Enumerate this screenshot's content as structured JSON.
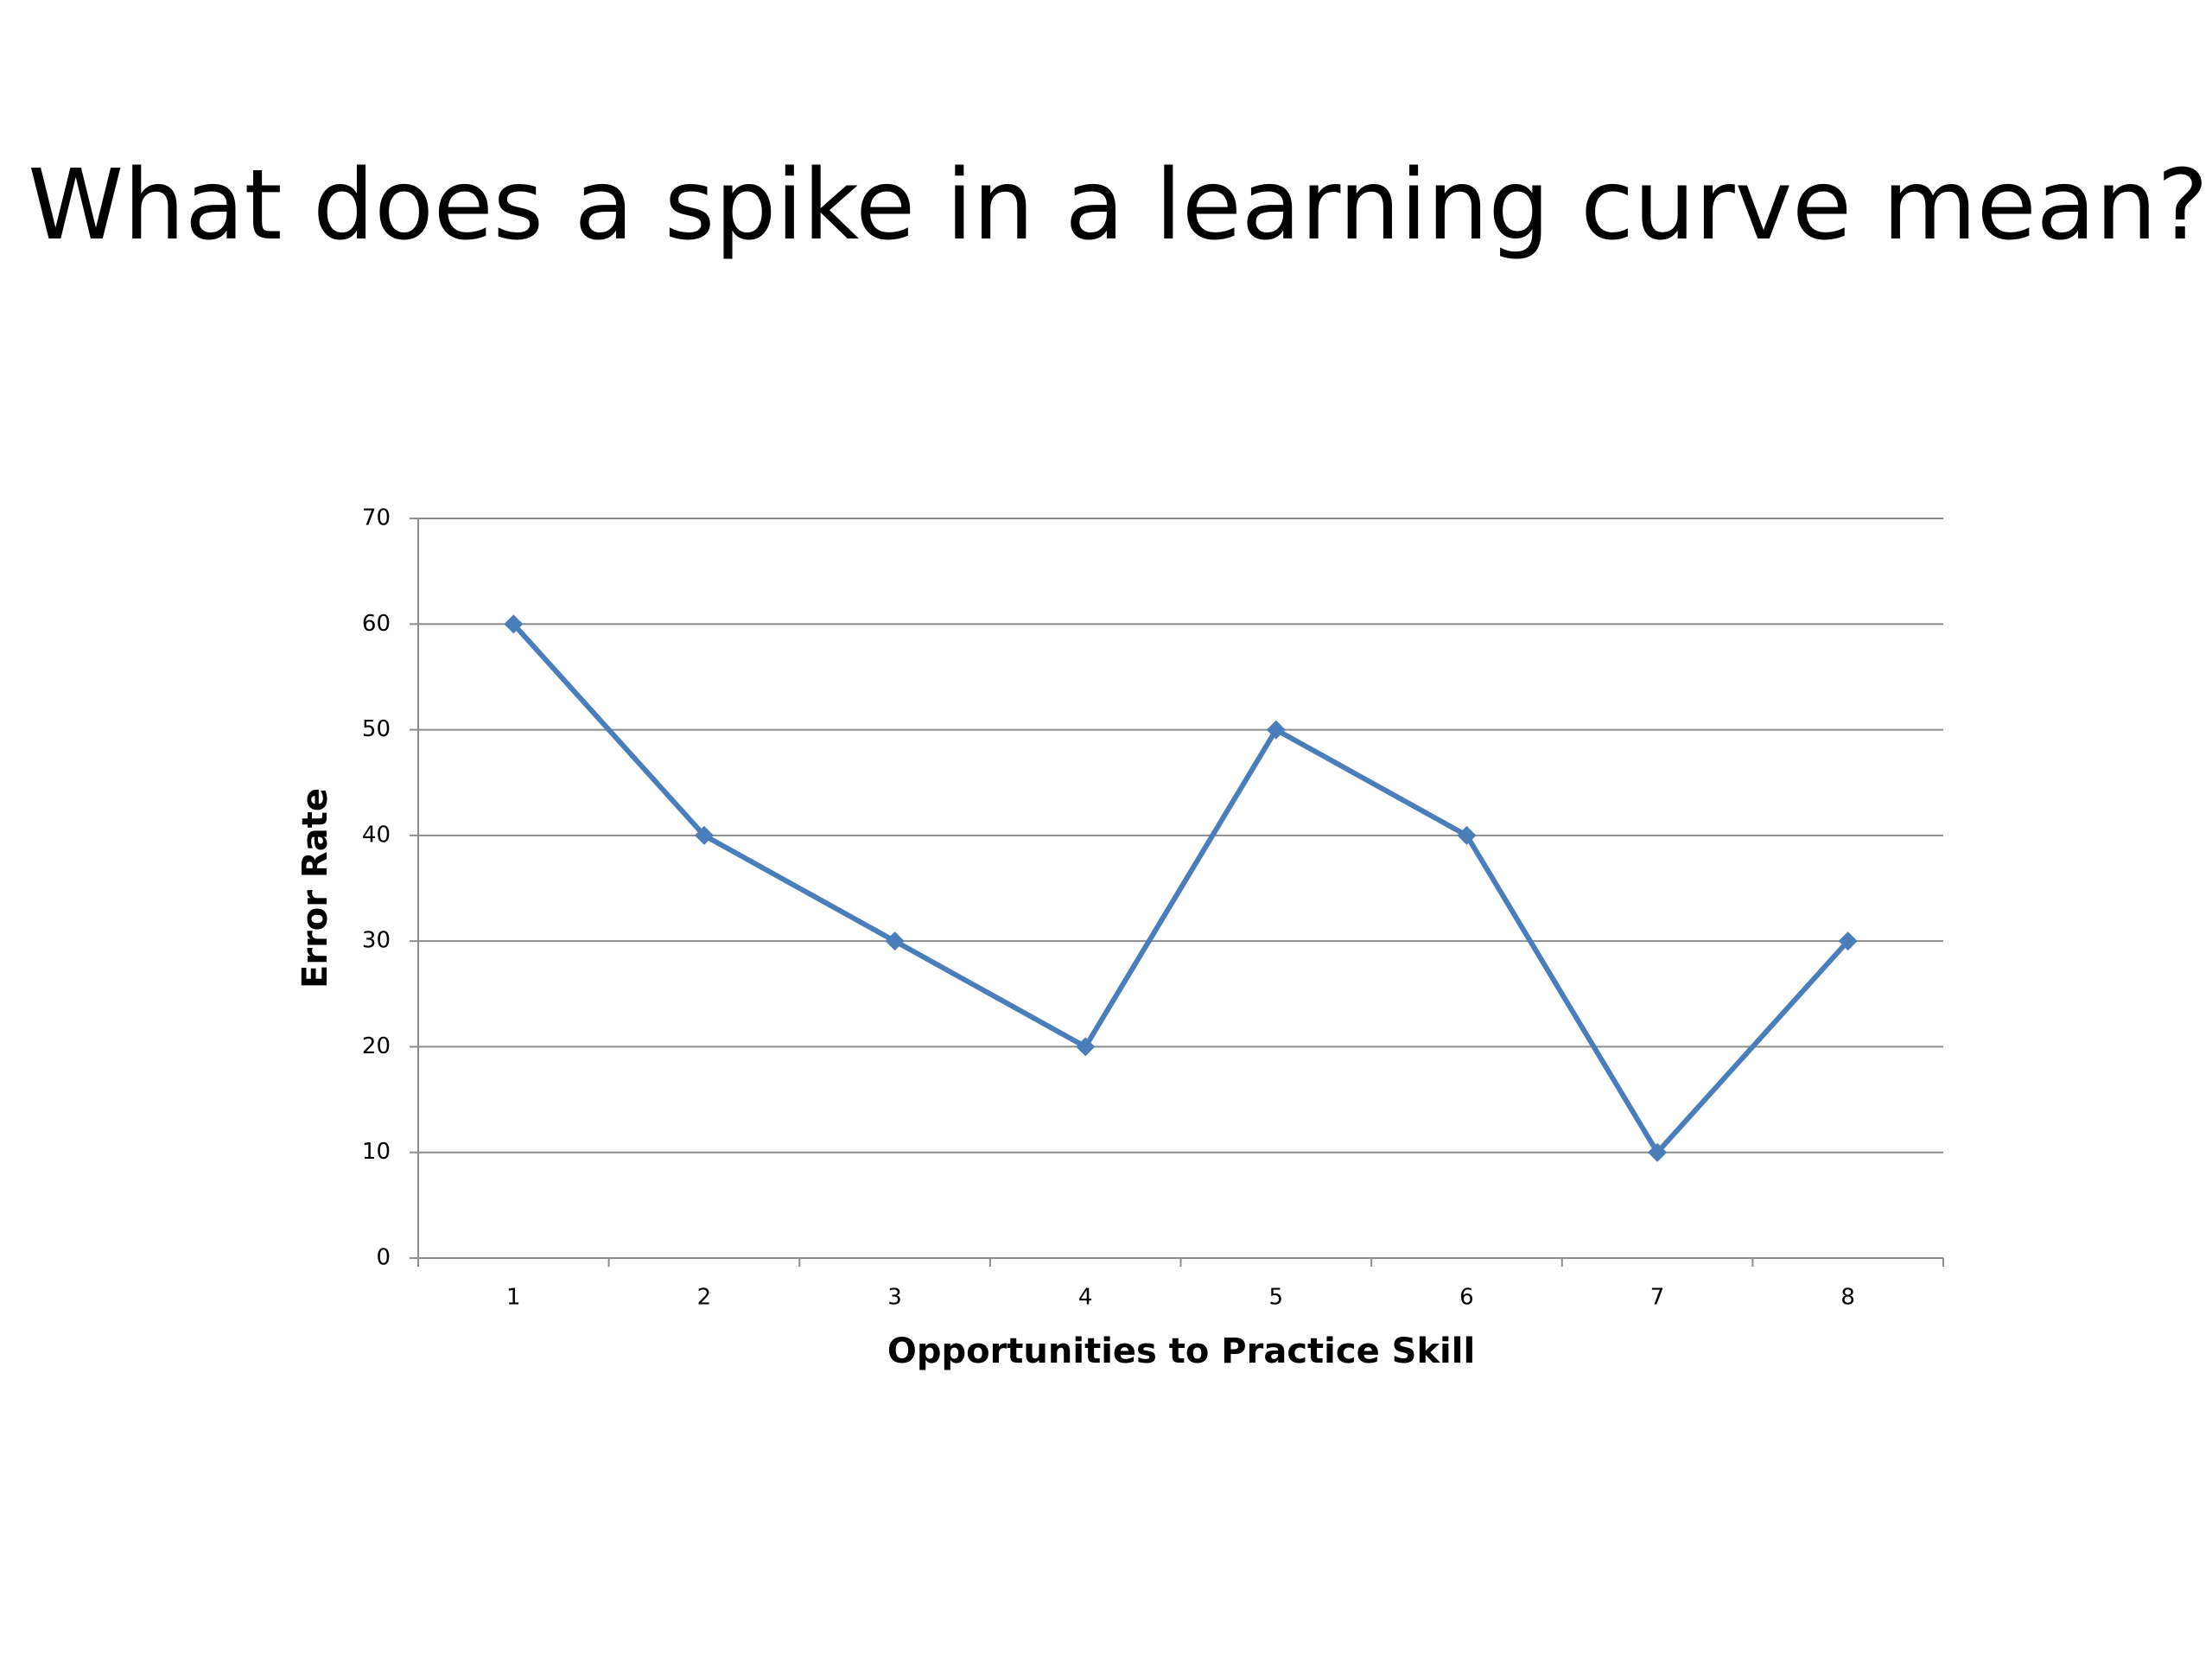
{
  "chart_data": {
    "type": "line",
    "title": "What does a spike in a learning curve mean?",
    "categories": [
      "1",
      "2",
      "3",
      "4",
      "5",
      "6",
      "7",
      "8"
    ],
    "values": [
      60,
      40,
      30,
      20,
      50,
      40,
      10,
      30
    ],
    "color": "#4a7ebb",
    "x_label": "Opportunities to Practice Skill",
    "y_label": "Error Rate",
    "ylim": [
      0,
      70
    ],
    "yticks": [
      0,
      10,
      20,
      30,
      40,
      50,
      60,
      70
    ],
    "grid": true
  }
}
